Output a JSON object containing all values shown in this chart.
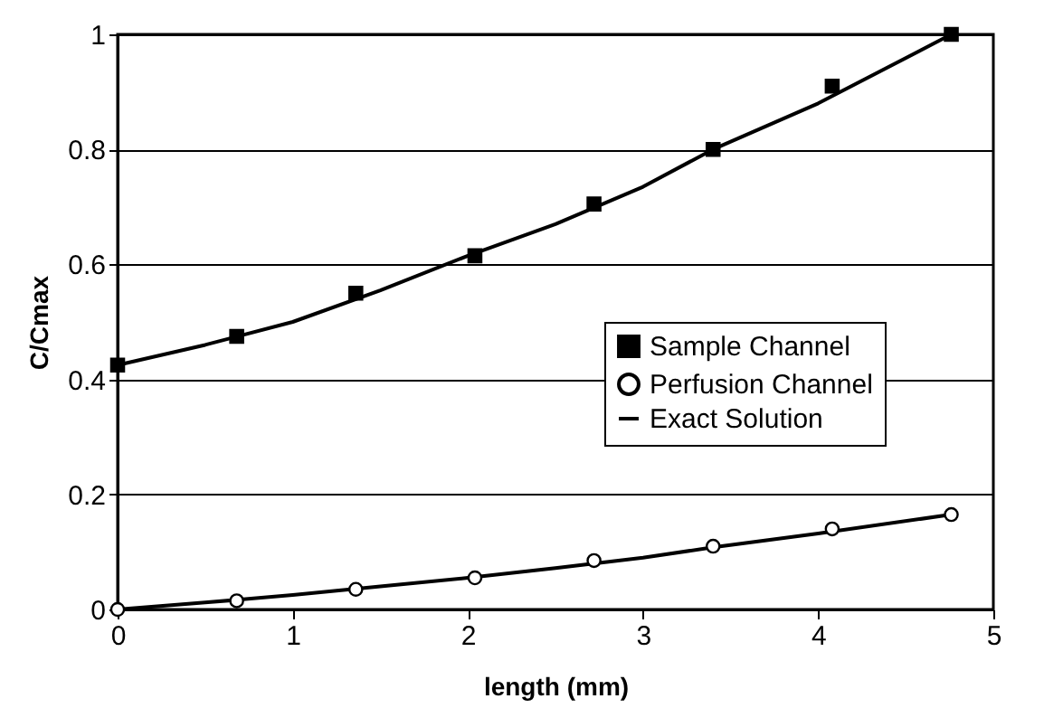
{
  "chart_data": {
    "type": "scatter",
    "xlabel": "length (mm)",
    "ylabel": "C/Cmax",
    "series": [
      {
        "name": "Sample Channel",
        "type": "scatter",
        "marker": "square",
        "color": "#000000",
        "x": [
          0,
          0.68,
          1.36,
          2.04,
          2.72,
          3.4,
          4.08,
          4.76
        ],
        "values": [
          0.425,
          0.475,
          0.55,
          0.615,
          0.705,
          0.8,
          0.91,
          1.0
        ]
      },
      {
        "name": "Perfusion Channel",
        "type": "scatter",
        "marker": "circle",
        "color": "#000000",
        "x": [
          0,
          0.68,
          1.36,
          2.04,
          2.72,
          3.4,
          4.08,
          4.76
        ],
        "values": [
          0,
          0.015,
          0.035,
          0.055,
          0.085,
          0.11,
          0.14,
          0.165
        ]
      },
      {
        "name": "Exact Solution",
        "type": "line",
        "color": "#000000",
        "x": [
          0,
          0.5,
          1,
          1.5,
          2,
          2.5,
          3,
          3.4,
          4,
          4.76
        ],
        "values": [
          0.425,
          0.46,
          0.5,
          0.555,
          0.615,
          0.67,
          0.735,
          0.8,
          0.88,
          1.0
        ]
      },
      {
        "type": "line",
        "color": "#000000",
        "x": [
          0,
          0.5,
          1,
          1.5,
          2,
          2.5,
          3,
          3.4,
          4,
          4.76
        ],
        "values": [
          0,
          0.012,
          0.025,
          0.04,
          0.055,
          0.072,
          0.09,
          0.108,
          0.132,
          0.165
        ]
      }
    ],
    "xlim": [
      0,
      5
    ],
    "xticks": [
      0,
      1,
      2,
      3,
      4,
      5
    ],
    "ylim": [
      0,
      1
    ],
    "yticks": [
      0,
      0.2,
      0.4,
      0.6,
      0.8,
      1
    ],
    "grid": "y",
    "legend": "right"
  }
}
